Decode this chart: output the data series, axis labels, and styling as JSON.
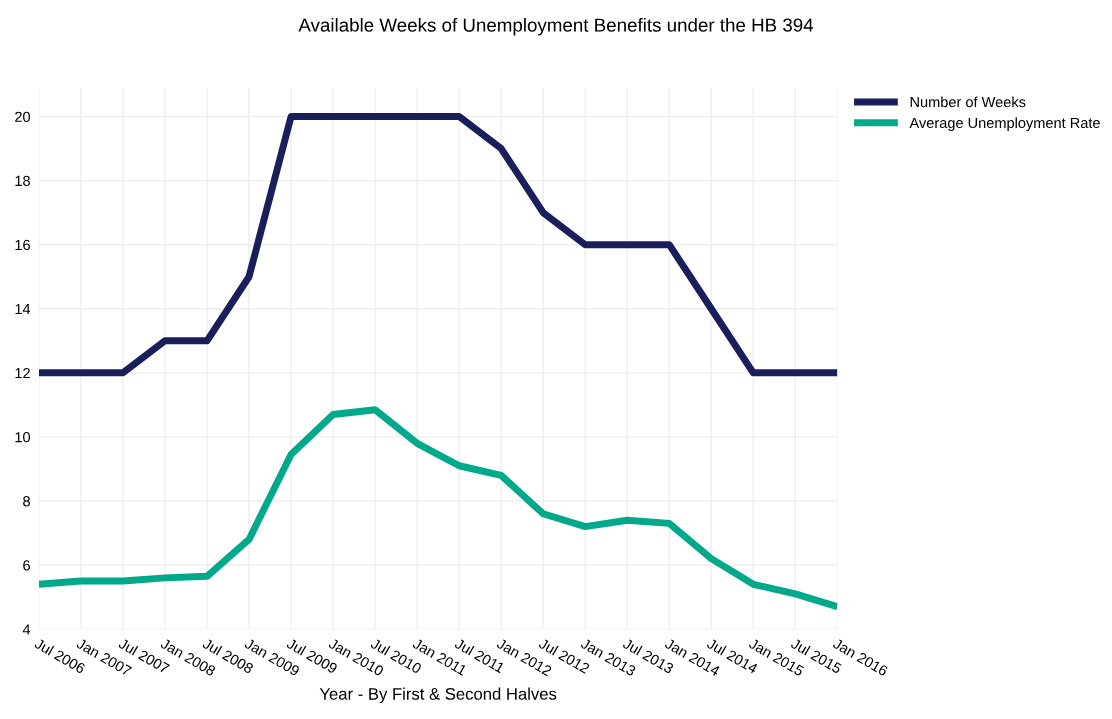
{
  "chart_data": {
    "type": "line",
    "title": "Available Weeks of Unemployment Benefits under the HB 394",
    "xlabel": "Year - By First & Second Halves",
    "categories": [
      "Jul 2006",
      "Jan 2007",
      "Jul 2007",
      "Jan 2008",
      "Jul 2008",
      "Jan 2009",
      "Jul 2009",
      "Jan 2010",
      "Jul 2010",
      "Jan 2011",
      "Jul 2011",
      "Jan 2012",
      "Jul 2012",
      "Jan 2013",
      "Jul 2013",
      "Jan 2014",
      "Jul 2014",
      "Jan 2015",
      "Jul 2015",
      "Jan 2016"
    ],
    "series": [
      {
        "name": "Number of Weeks",
        "color": "#1a1f5c",
        "values": [
          12,
          12,
          12,
          13,
          13,
          15,
          20,
          20,
          20,
          20,
          20,
          19,
          17,
          16,
          16,
          16,
          14,
          12,
          12,
          12
        ]
      },
      {
        "name": "Average Unemployment Rate",
        "color": "#00a98a",
        "values": [
          5.4,
          5.5,
          5.5,
          5.6,
          5.65,
          6.8,
          9.45,
          10.7,
          10.85,
          9.8,
          9.1,
          8.8,
          7.6,
          7.2,
          7.4,
          7.3,
          6.2,
          5.4,
          5.1,
          4.7
        ]
      }
    ],
    "ylim": [
      4,
      20.9
    ],
    "yticks": [
      4,
      6,
      8,
      10,
      12,
      14,
      16,
      18,
      20
    ],
    "grid": true,
    "legend": "top right",
    "line_style": "solid",
    "marker": "none"
  }
}
